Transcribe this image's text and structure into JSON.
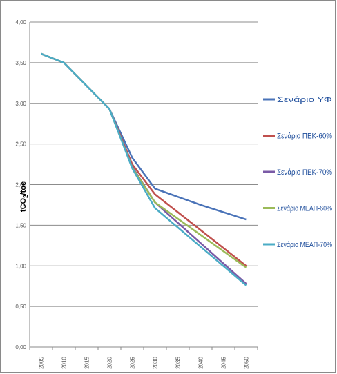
{
  "chart_data": {
    "type": "line",
    "title": "",
    "xlabel": "",
    "ylabel": "tCO2/toe",
    "ylabel_parts": {
      "main": "tCO",
      "sub": "2",
      "tail": "/toe"
    },
    "x": [
      2005,
      2010,
      2015,
      2020,
      2025,
      2030,
      2035,
      2040,
      2045,
      2050
    ],
    "x_tick_labels": [
      "2005",
      "2010",
      "2015",
      "2020",
      "2025",
      "2030",
      "2035",
      "2040",
      "2045",
      "2050"
    ],
    "y_tick_labels": [
      "0,00",
      "0,50",
      "1,00",
      "1,50",
      "2,00",
      "2,50",
      "3,00",
      "3,50",
      "4,00"
    ],
    "ylim": [
      0,
      4
    ],
    "grid": true,
    "legend_position": "right",
    "series": [
      {
        "name": "Σενάριο ΥΦ",
        "color": "#4a73b8",
        "points": [
          [
            2005,
            3.61
          ],
          [
            2010,
            3.5
          ],
          [
            2020,
            2.93
          ],
          [
            2025,
            2.33
          ],
          [
            2030,
            1.95
          ],
          [
            2040,
            1.75
          ],
          [
            2050,
            1.57
          ]
        ]
      },
      {
        "name": "Σενάριο ΠΕΚ-60%",
        "color": "#c0504d",
        "points": [
          [
            2005,
            3.61
          ],
          [
            2010,
            3.5
          ],
          [
            2020,
            2.93
          ],
          [
            2025,
            2.25
          ],
          [
            2030,
            1.88
          ],
          [
            2050,
            1.0
          ]
        ]
      },
      {
        "name": "Σενάριο ΠΕΚ-70%",
        "color": "#7a5aa6",
        "points": [
          [
            2005,
            3.61
          ],
          [
            2010,
            3.5
          ],
          [
            2020,
            2.93
          ],
          [
            2025,
            2.22
          ],
          [
            2030,
            1.78
          ],
          [
            2050,
            0.78
          ]
        ]
      },
      {
        "name": "Σενάριο ΜΕΑΠ-60%",
        "color": "#9bbb59",
        "points": [
          [
            2005,
            3.61
          ],
          [
            2010,
            3.5
          ],
          [
            2020,
            2.93
          ],
          [
            2025,
            2.21
          ],
          [
            2030,
            1.78
          ],
          [
            2050,
            0.98
          ]
        ]
      },
      {
        "name": "Σενάριο ΜΕΑΠ-70%",
        "color": "#4bacc6",
        "points": [
          [
            2005,
            3.61
          ],
          [
            2010,
            3.5
          ],
          [
            2020,
            2.93
          ],
          [
            2025,
            2.2
          ],
          [
            2030,
            1.71
          ],
          [
            2050,
            0.76
          ]
        ]
      }
    ]
  }
}
